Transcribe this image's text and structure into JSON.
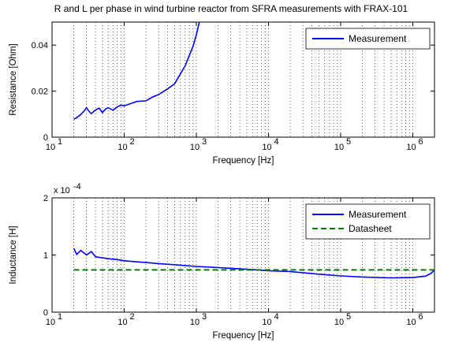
{
  "chart_data": [
    {
      "type": "line",
      "title": "R and L per phase in wind turbine reactor from SFRA measurements with FRAX-101",
      "xlabel": "Frequency [Hz]",
      "ylabel": "Resistance [Ohm]",
      "xscale": "log",
      "xlim": [
        10,
        2000000
      ],
      "ylim": [
        0,
        0.05
      ],
      "xticks": [
        "10",
        "2",
        "3",
        "4",
        "5",
        "6"
      ],
      "yticks": [
        "0",
        "0.02",
        "0.04"
      ],
      "grid": "vertical dotted",
      "legend_position": "top-right",
      "series": [
        {
          "name": "Measurement",
          "color": "#0000ff",
          "style": "solid",
          "x": [
            20,
            22,
            25,
            28,
            30,
            33,
            35,
            40,
            45,
            50,
            55,
            60,
            70,
            80,
            90,
            100,
            120,
            150,
            200,
            250,
            300,
            400,
            500,
            600,
            700,
            800,
            900,
            1000,
            1100
          ],
          "y": [
            0.0078,
            0.0085,
            0.0098,
            0.0115,
            0.0128,
            0.011,
            0.0102,
            0.0118,
            0.0126,
            0.0107,
            0.0122,
            0.0128,
            0.0117,
            0.0131,
            0.0139,
            0.0136,
            0.0145,
            0.0155,
            0.0158,
            0.0175,
            0.0185,
            0.021,
            0.0232,
            0.0275,
            0.031,
            0.0355,
            0.0395,
            0.0445,
            0.05
          ]
        }
      ]
    },
    {
      "type": "line",
      "xlabel": "Frequency [Hz]",
      "ylabel": "Inductance [H]",
      "yexponent": "x 10",
      "yexponent_power": "-4",
      "xscale": "log",
      "xlim": [
        10,
        2000000
      ],
      "ylim": [
        0,
        0.0002
      ],
      "xticks": [
        "10",
        "2",
        "3",
        "4",
        "5",
        "6"
      ],
      "yticks": [
        "0",
        "1",
        "2"
      ],
      "grid": "vertical dotted",
      "legend_position": "top-right",
      "series": [
        {
          "name": "Measurement",
          "color": "#0000ff",
          "style": "solid",
          "x": [
            20,
            22,
            25,
            30,
            35,
            40,
            50,
            60,
            80,
            100,
            150,
            200,
            300,
            500,
            1000,
            2000,
            5000,
            10000,
            20000,
            50000,
            100000,
            200000,
            500000,
            1000000,
            1500000,
            1800000,
            2000000
          ],
          "y": [
            0.000112,
            0.000101,
            0.000108,
            0.0001,
            0.000106,
            9.7e-05,
            9.5e-05,
            9.35e-05,
            9.2e-05,
            9e-05,
            8.8e-05,
            8.7e-05,
            8.5e-05,
            8.3e-05,
            8e-05,
            7.8e-05,
            7.5e-05,
            7.25e-05,
            7.1e-05,
            6.65e-05,
            6.35e-05,
            6.15e-05,
            6e-05,
            6.05e-05,
            6.3e-05,
            6.8e-05,
            7.4e-05
          ]
        },
        {
          "name": "Datasheet",
          "color": "#008000",
          "style": "dashed",
          "x": [
            20,
            2000000
          ],
          "y": [
            7.4e-05,
            7.4e-05
          ]
        }
      ]
    }
  ]
}
